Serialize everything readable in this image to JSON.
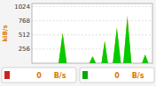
{
  "chart_data": {
    "type": "area",
    "y_label": "kiB/s",
    "x": [
      0,
      1,
      2,
      3,
      4,
      5,
      6,
      7,
      8,
      9,
      10,
      11,
      12,
      13,
      14,
      15,
      16,
      17,
      18,
      19,
      20,
      21,
      22,
      23,
      24,
      25,
      26,
      27,
      28,
      29,
      30,
      31,
      32,
      33,
      34,
      35,
      36,
      37,
      38,
      39,
      40,
      41,
      42,
      43,
      44,
      45,
      46,
      47,
      48,
      49,
      50,
      51,
      52,
      53,
      54,
      55,
      56,
      57,
      58,
      59,
      60,
      61,
      62,
      63,
      64,
      65,
      66,
      67,
      68,
      69,
      70,
      71,
      72,
      73,
      74,
      75,
      76,
      77,
      78,
      79,
      80,
      81,
      82,
      83,
      84,
      85,
      86,
      87,
      88,
      89,
      90,
      91,
      92,
      93,
      94,
      95,
      96,
      97,
      98,
      99,
      100,
      101,
      102,
      103,
      104,
      105,
      106,
      107,
      108,
      109,
      110,
      111,
      112,
      113,
      114,
      115,
      116,
      117,
      118,
      119,
      120,
      121,
      122,
      123,
      124,
      125,
      126,
      127,
      128,
      129,
      130,
      131,
      132,
      133,
      134,
      135,
      136,
      137,
      138,
      139,
      140,
      141,
      142,
      143,
      144,
      145,
      146,
      147,
      148,
      149
    ],
    "series": [
      {
        "color": "#00cc00",
        "values": [
          0,
          0,
          0,
          0,
          0,
          0,
          0,
          0,
          0,
          0,
          0,
          0,
          0,
          0,
          0,
          0,
          0,
          0,
          0,
          0,
          0,
          0,
          0,
          0,
          0,
          0,
          0,
          0,
          0,
          0,
          0,
          0,
          0,
          0,
          106,
          212,
          318,
          424,
          530,
          424,
          318,
          212,
          106,
          0,
          0,
          0,
          0,
          0,
          0,
          0,
          0,
          0,
          0,
          0,
          0,
          0,
          0,
          0,
          0,
          0,
          0,
          0,
          0,
          0,
          0,
          0,
          0,
          0,
          0,
          0,
          0,
          0,
          30,
          60,
          90,
          120,
          90,
          60,
          30,
          0,
          0,
          0,
          0,
          0,
          0,
          0,
          0,
          97.5,
          195,
          292.5,
          390,
          292.5,
          195,
          97.5,
          0,
          0,
          0,
          0,
          0,
          0,
          0,
          124,
          248,
          372,
          496,
          620,
          496,
          372,
          248,
          124,
          0,
          0,
          0,
          0,
          164,
          328,
          492,
          656,
          820,
          656,
          492,
          328,
          164,
          0,
          0,
          0,
          0,
          0,
          0,
          0,
          0,
          0,
          0,
          0,
          0,
          0,
          0,
          37.5,
          75,
          112.5,
          150,
          112.5,
          75,
          37.5,
          0,
          0,
          0,
          0,
          0,
          0
        ]
      },
      {
        "color": "#aaaa00",
        "values": [
          0,
          0,
          0,
          0,
          0,
          0,
          0,
          0,
          0,
          0,
          0,
          0,
          0,
          0,
          0,
          0,
          0,
          0,
          0,
          0,
          0,
          0,
          0,
          0,
          0,
          0,
          0,
          0,
          0,
          0,
          0,
          0,
          0,
          0,
          112.36,
          224.72,
          337.08,
          449.44,
          561.8,
          449.44,
          337.08,
          224.72,
          112.36,
          0,
          0,
          0,
          0,
          0,
          0,
          0,
          0,
          0,
          0,
          0,
          0,
          0,
          0,
          0,
          0,
          0,
          0,
          0,
          0,
          0,
          0,
          0,
          0,
          0,
          0,
          0,
          0,
          0,
          31.8,
          63.6,
          95.4,
          127.2,
          95.4,
          63.6,
          31.8,
          0,
          0,
          0,
          0,
          0,
          0,
          0,
          0,
          103.35,
          206.7,
          310.05,
          413.4,
          310.05,
          206.7,
          103.35,
          0,
          0,
          0,
          0,
          0,
          0,
          0,
          131.44,
          262.88,
          394.32,
          525.76,
          657.2,
          525.76,
          394.32,
          262.88,
          131.44,
          0,
          0,
          0,
          0,
          173.84,
          347.68,
          521.52,
          695.36,
          869.2,
          695.36,
          521.52,
          347.68,
          173.84,
          0,
          0,
          0,
          0,
          0,
          0,
          0,
          0,
          0,
          0,
          0,
          0,
          0,
          0,
          39.75,
          79.5,
          119.25,
          159,
          119.25,
          79.5,
          39.75,
          0,
          0,
          0,
          0,
          0,
          0
        ]
      }
    ],
    "xlim": [
      0,
      149
    ],
    "ylim": [
      0,
      1080
    ],
    "yticks": [
      256,
      512,
      768,
      1024
    ],
    "grid": true,
    "tick_labels": "y",
    "annotations": [
      "0",
      "B/s",
      "0",
      "B/s"
    ]
  }
}
